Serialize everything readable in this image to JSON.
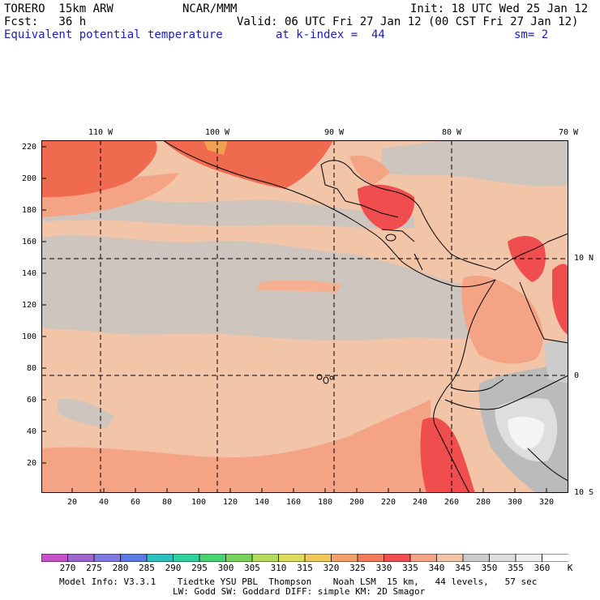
{
  "header": {
    "model": "TORERO  15km ARW",
    "org": "NCAR/MMM",
    "init": "Init: 18 UTC Wed 25 Jan 12",
    "fcst": "Fcst:   36 h",
    "valid": "Valid: 06 UTC Fri 27 Jan 12 (00 CST Fri 27 Jan 12)",
    "field": "Equivalent potential temperature",
    "level": "at k-index =  44",
    "smooth": "sm= 2"
  },
  "axes": {
    "y_ticks": [
      "220",
      "200",
      "180",
      "160",
      "140",
      "120",
      "100",
      "80",
      "60",
      "40",
      "20"
    ],
    "x_ticks": [
      "20",
      "40",
      "60",
      "80",
      "100",
      "120",
      "140",
      "160",
      "180",
      "200",
      "220",
      "240",
      "260",
      "280",
      "300",
      "320"
    ],
    "lon_labels": [
      "110 W",
      "100 W",
      "90 W",
      "80 W",
      "70 W"
    ],
    "lat_labels": [
      "10 N",
      "0",
      "10 S"
    ]
  },
  "colorbar": {
    "labels": [
      "270",
      "275",
      "280",
      "285",
      "290",
      "295",
      "300",
      "305",
      "310",
      "315",
      "320",
      "325",
      "330",
      "335",
      "340",
      "345",
      "350",
      "355",
      "360"
    ],
    "unit": "K",
    "colors": [
      "#c851c8",
      "#a066d0",
      "#8078e0",
      "#5a7ae6",
      "#2ebfbf",
      "#2ed3a0",
      "#46d46e",
      "#7ad25a",
      "#b4dc5a",
      "#dcdc5a",
      "#f0c85a",
      "#f4a06a",
      "#f27a5a",
      "#f04e4e",
      "#f4a484",
      "#f2c4a8",
      "#cccccc",
      "#dddddd",
      "#eeeeee",
      "#ffffff"
    ]
  },
  "footer": {
    "line1": "Model Info: V3.3.1    Tiedtke YSU PBL  Thompson    Noah LSM  15 km,   44 levels,   57 sec",
    "line2": "LW: Godd SW: Goddard DIFF: simple KM: 2D Smagor"
  }
}
